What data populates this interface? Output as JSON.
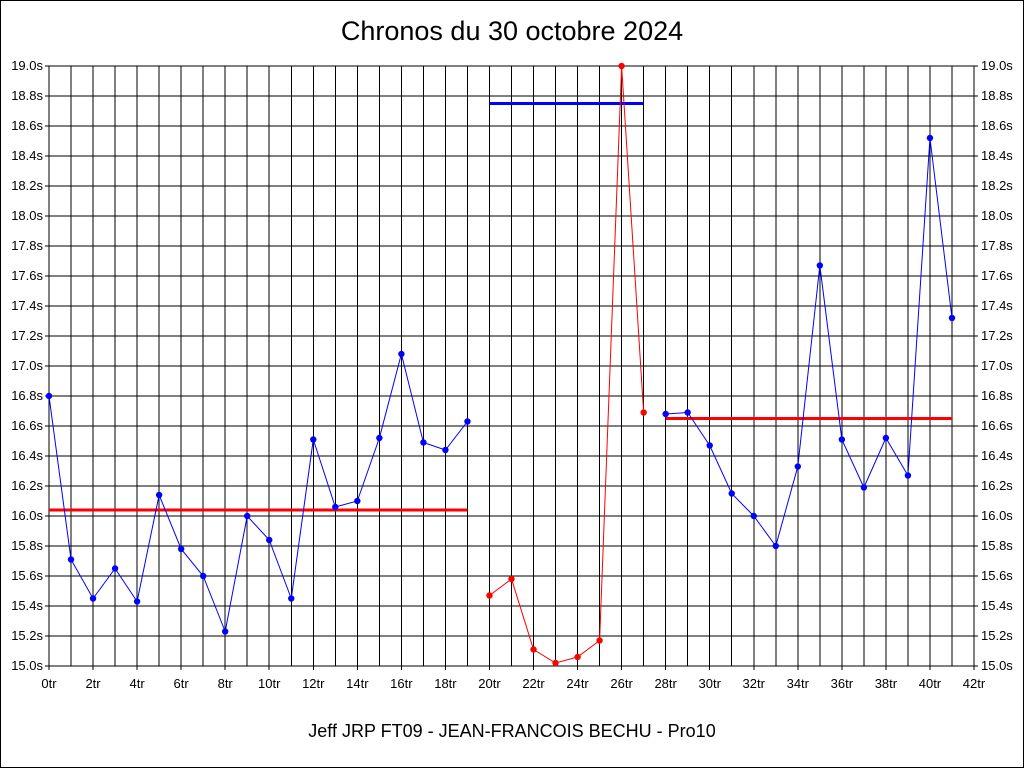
{
  "chart_data": {
    "type": "line",
    "title": "Chronos du 30 octobre 2024",
    "footer": "Jeff JRP FT09 - JEAN-FRANCOIS BECHU - Pro10",
    "xlim": [
      0,
      42
    ],
    "ylim": [
      15.0,
      19.0
    ],
    "grid": true,
    "x_tick_labels": [
      "0tr",
      "2tr",
      "4tr",
      "6tr",
      "8tr",
      "10tr",
      "12tr",
      "14tr",
      "16tr",
      "18tr",
      "20tr",
      "22tr",
      "24tr",
      "26tr",
      "28tr",
      "30tr",
      "32tr",
      "34tr",
      "36tr",
      "38tr",
      "40tr",
      "42tr"
    ],
    "y_tick_labels": [
      "15.0s",
      "15.2s",
      "15.4s",
      "15.6s",
      "15.8s",
      "16.0s",
      "16.2s",
      "16.4s",
      "16.6s",
      "16.8s",
      "17.0s",
      "17.2s",
      "17.4s",
      "17.6s",
      "17.8s",
      "18.0s",
      "18.2s",
      "18.4s",
      "18.6s",
      "18.8s",
      "19.0s"
    ],
    "series": [
      {
        "color": "#0000ff",
        "x": [
          0,
          1,
          2,
          3,
          4,
          5,
          6,
          7,
          8,
          9,
          10,
          11,
          12,
          13,
          14,
          15,
          16,
          17,
          18,
          19
        ],
        "y": [
          16.8,
          15.71,
          15.45,
          15.65,
          15.43,
          16.14,
          15.78,
          15.6,
          15.23,
          16.0,
          15.84,
          15.45,
          16.51,
          16.06,
          16.1,
          16.52,
          17.08,
          16.49,
          16.44,
          16.63
        ]
      },
      {
        "color": "#ff0000",
        "x": [
          20,
          21,
          22,
          23,
          24,
          25,
          26,
          27
        ],
        "y": [
          15.47,
          15.58,
          15.11,
          15.02,
          15.06,
          15.17,
          19.0,
          16.69
        ]
      },
      {
        "color": "#0000ff",
        "x": [
          28,
          29,
          30,
          31,
          32,
          33,
          34,
          35,
          36,
          37,
          38,
          39,
          40,
          41
        ],
        "y": [
          16.68,
          16.69,
          16.47,
          16.15,
          16.0,
          15.8,
          16.33,
          17.67,
          16.51,
          16.19,
          16.52,
          16.27,
          18.52,
          17.32
        ]
      }
    ],
    "reference_lines": [
      {
        "color": "#ff0000",
        "x": [
          0,
          19
        ],
        "y": 16.04
      },
      {
        "color": "#0000ff",
        "x": [
          20,
          27
        ],
        "y": 18.75
      },
      {
        "color": "#ff0000",
        "x": [
          28,
          41
        ],
        "y": 16.65
      }
    ]
  }
}
